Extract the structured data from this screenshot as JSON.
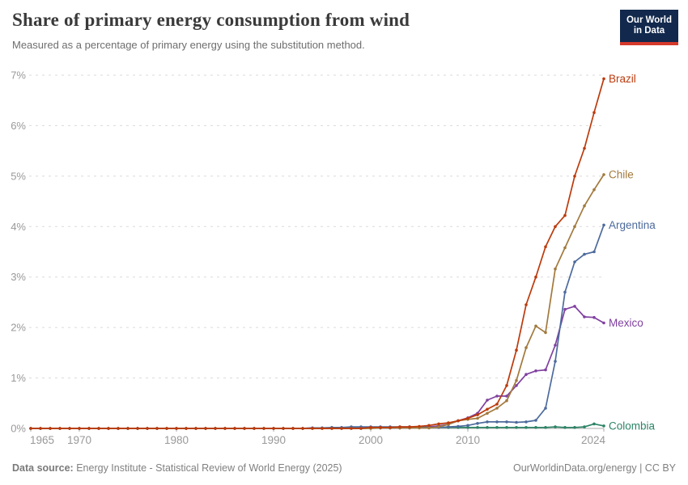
{
  "header": {
    "title": "Share of primary energy consumption from wind",
    "subtitle": "Measured as a percentage of primary energy using the substitution method.",
    "logo": {
      "line1": "Our World",
      "line2": "in Data"
    }
  },
  "footer": {
    "source_label": "Data source:",
    "source_text": " Energy Institute - Statistical Review of World Energy (2025)",
    "credit": "OurWorldinData.org/energy | CC BY"
  },
  "colors": {
    "brazil": "#bc3a0c",
    "chile": "#a2793d",
    "argentina": "#4c6a9c",
    "mexico": "#8040a0",
    "colombia": "#2c8465",
    "grid": "#dadada",
    "axis": "#a8a8a8",
    "tick_text": "#999999",
    "logo_bg": "#12294d",
    "logo_accent": "#d6392b"
  },
  "chart_data": {
    "type": "line",
    "title": "Share of primary energy consumption from wind",
    "xlabel": "",
    "ylabel": "",
    "ylim": [
      0,
      7
    ],
    "grid": "horizontal-dashed",
    "legend_position": "right-end-labels",
    "x_tick_values": [
      1965,
      1970,
      1980,
      1990,
      2000,
      2010,
      2024
    ],
    "x_tick_labels": [
      "1965",
      "1970",
      "1980",
      "1990",
      "2000",
      "2010",
      "2024"
    ],
    "y_tick_values": [
      0,
      1,
      2,
      3,
      4,
      5,
      6,
      7
    ],
    "y_tick_labels": [
      "0%",
      "1%",
      "2%",
      "3%",
      "4%",
      "5%",
      "6%",
      "7%"
    ],
    "x_range": [
      1965,
      2024
    ],
    "years": [
      1965,
      1966,
      1967,
      1968,
      1969,
      1970,
      1971,
      1972,
      1973,
      1974,
      1975,
      1976,
      1977,
      1978,
      1979,
      1980,
      1981,
      1982,
      1983,
      1984,
      1985,
      1986,
      1987,
      1988,
      1989,
      1990,
      1991,
      1992,
      1993,
      1994,
      1995,
      1996,
      1997,
      1998,
      1999,
      2000,
      2001,
      2002,
      2003,
      2004,
      2005,
      2006,
      2007,
      2008,
      2009,
      2010,
      2011,
      2012,
      2013,
      2014,
      2015,
      2016,
      2017,
      2018,
      2019,
      2020,
      2021,
      2022,
      2023,
      2024
    ],
    "series": [
      {
        "name": "Brazil",
        "color": "#bc3a0c",
        "values": [
          0,
          0,
          0,
          0,
          0,
          0,
          0,
          0,
          0,
          0,
          0,
          0,
          0,
          0,
          0,
          0,
          0,
          0,
          0,
          0,
          0,
          0,
          0,
          0,
          0,
          0,
          0,
          0,
          0,
          0,
          0,
          0,
          0,
          0,
          0,
          0.02,
          0.02,
          0.02,
          0.03,
          0.03,
          0.04,
          0.06,
          0.09,
          0.11,
          0.15,
          0.2,
          0.27,
          0.38,
          0.48,
          0.85,
          1.55,
          2.45,
          3.0,
          3.6,
          4.0,
          4.22,
          5.0,
          5.55,
          6.26,
          6.93
        ]
      },
      {
        "name": "Chile",
        "color": "#a2793d",
        "values": [
          0,
          0,
          0,
          0,
          0,
          0,
          0,
          0,
          0,
          0,
          0,
          0,
          0,
          0,
          0,
          0,
          0,
          0,
          0,
          0,
          0,
          0,
          0,
          0,
          0,
          0,
          0,
          0,
          0,
          0,
          0,
          0,
          0,
          0,
          0,
          0,
          0.01,
          0.01,
          0.01,
          0.01,
          0.01,
          0.01,
          0.03,
          0.08,
          0.15,
          0.18,
          0.2,
          0.3,
          0.4,
          0.55,
          0.95,
          1.6,
          2.03,
          1.9,
          3.16,
          3.58,
          4.0,
          4.41,
          4.73,
          5.03
        ]
      },
      {
        "name": "Argentina",
        "color": "#4c6a9c",
        "values": [
          0,
          0,
          0,
          0,
          0,
          0,
          0,
          0,
          0,
          0,
          0,
          0,
          0,
          0,
          0,
          0,
          0,
          0,
          0,
          0,
          0,
          0,
          0,
          0,
          0,
          0,
          0,
          0,
          0,
          0.01,
          0.01,
          0.02,
          0.02,
          0.03,
          0.03,
          0.03,
          0.03,
          0.03,
          0.03,
          0.03,
          0.03,
          0.02,
          0.02,
          0.03,
          0.04,
          0.06,
          0.1,
          0.13,
          0.13,
          0.13,
          0.12,
          0.13,
          0.16,
          0.4,
          1.33,
          2.7,
          3.3,
          3.45,
          3.5,
          4.03
        ]
      },
      {
        "name": "Mexico",
        "color": "#8040a0",
        "values": [
          0,
          0,
          0,
          0,
          0,
          0,
          0,
          0,
          0,
          0,
          0,
          0,
          0,
          0,
          0,
          0,
          0,
          0,
          0,
          0,
          0,
          0,
          0,
          0,
          0,
          0,
          0,
          0,
          0,
          0.01,
          0.01,
          0.01,
          0.01,
          0.01,
          0.01,
          0.01,
          0.01,
          0.01,
          0.01,
          0.01,
          0.02,
          0.03,
          0.05,
          0.08,
          0.15,
          0.21,
          0.3,
          0.56,
          0.64,
          0.64,
          0.85,
          1.07,
          1.14,
          1.16,
          1.65,
          2.36,
          2.42,
          2.21,
          2.2,
          2.09
        ]
      },
      {
        "name": "Colombia",
        "color": "#2c8465",
        "values": [
          0,
          0,
          0,
          0,
          0,
          0,
          0,
          0,
          0,
          0,
          0,
          0,
          0,
          0,
          0,
          0,
          0,
          0,
          0,
          0,
          0,
          0,
          0,
          0,
          0,
          0,
          0,
          0,
          0,
          0,
          0,
          0,
          0,
          0,
          0,
          0.01,
          0.01,
          0.01,
          0.01,
          0.02,
          0.02,
          0.02,
          0.02,
          0.02,
          0.02,
          0.02,
          0.02,
          0.02,
          0.02,
          0.02,
          0.02,
          0.02,
          0.02,
          0.02,
          0.03,
          0.02,
          0.02,
          0.03,
          0.09,
          0.05
        ]
      }
    ]
  }
}
